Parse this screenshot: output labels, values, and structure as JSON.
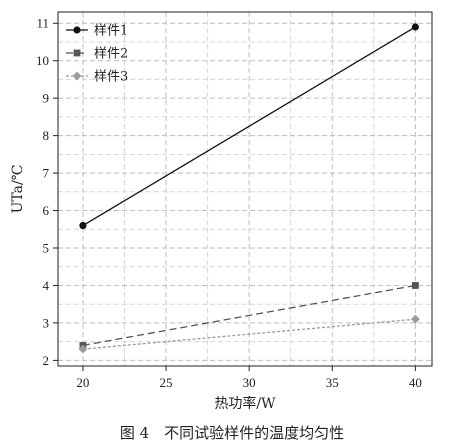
{
  "chart_data": {
    "type": "line",
    "xlabel": "热功率/W",
    "ylabel": "UTa/℃",
    "xlim": [
      18.5,
      41
    ],
    "ylim": [
      1.85,
      11.3
    ],
    "xticks": [
      20,
      25,
      30,
      35,
      40
    ],
    "yticks": [
      2,
      3,
      4,
      5,
      6,
      7,
      8,
      9,
      10,
      11
    ],
    "grid": true,
    "legend_position": "top-left",
    "series": [
      {
        "name": "样件1",
        "x": [
          20,
          40
        ],
        "y": [
          5.6,
          10.9
        ],
        "color": "#111111",
        "dash": "",
        "marker": "circle"
      },
      {
        "name": "样件2",
        "x": [
          20,
          40
        ],
        "y": [
          2.4,
          4.0
        ],
        "color": "#555555",
        "dash": "7,4",
        "marker": "square"
      },
      {
        "name": "样件3",
        "x": [
          20,
          40
        ],
        "y": [
          2.3,
          3.1
        ],
        "color": "#9a9a9a",
        "dash": "3,2",
        "marker": "diamond"
      }
    ]
  },
  "caption": "图 4　不同试验样件的温度均匀性"
}
